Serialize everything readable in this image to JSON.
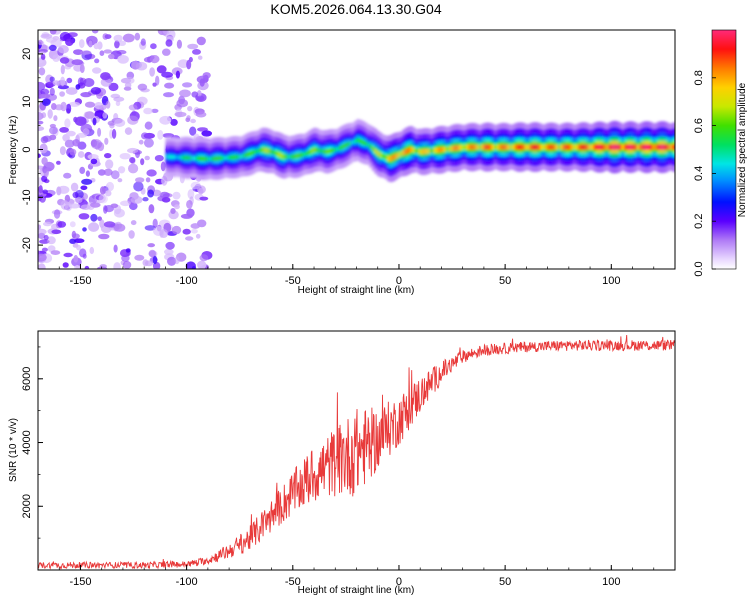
{
  "title": "KOM5.2026.064.13.30.G04",
  "chart_data": [
    {
      "type": "heatmap",
      "xlabel": "Height of straight line (km)",
      "ylabel": "Frequency (Hz)",
      "xlim": [
        -170,
        130
      ],
      "ylim": [
        -25,
        25
      ],
      "xticks": [
        -150,
        -100,
        -50,
        0,
        50,
        100
      ],
      "yticks": [
        -20,
        -10,
        0,
        10,
        20
      ],
      "colorbar": {
        "label": "Normalized spectral amplitude",
        "range": [
          0,
          1
        ],
        "ticks": [
          0.0,
          0.2,
          0.4,
          0.6,
          0.8
        ]
      },
      "ridge_frequency": {
        "x": [
          -110,
          -90,
          -75,
          -65,
          -60,
          -55,
          -50,
          -45,
          -40,
          -35,
          -30,
          -25,
          -20,
          -15,
          -10,
          -5,
          0,
          5,
          10,
          20,
          30,
          50,
          70,
          90,
          110,
          130
        ],
        "freq_hz": [
          -1.5,
          -2,
          -1.5,
          0,
          -0.5,
          -1.5,
          -1.5,
          -1,
          0,
          -0.5,
          0,
          1,
          2,
          1,
          -1,
          -2,
          -1,
          0,
          -0.5,
          0,
          0.5,
          0.5,
          0.5,
          0.5,
          0.5,
          0.5
        ]
      },
      "ridge_amplitude": {
        "x": [
          -110,
          -100,
          -90,
          -80,
          -70,
          -60,
          -50,
          -40,
          -30,
          -20,
          -10,
          0,
          10,
          20,
          30,
          40,
          50,
          60,
          70,
          80,
          90,
          100,
          110,
          120,
          130
        ],
        "amplitude": [
          0.35,
          0.45,
          0.5,
          0.45,
          0.5,
          0.6,
          0.5,
          0.55,
          0.5,
          0.45,
          0.6,
          0.75,
          0.65,
          0.7,
          0.7,
          0.75,
          0.72,
          0.8,
          0.75,
          0.75,
          0.8,
          0.9,
          0.85,
          0.88,
          0.85
        ]
      }
    },
    {
      "type": "line",
      "xlabel": "Height of straight line (km)",
      "ylabel": "SNR (10 * v/v)",
      "xlim": [
        -170,
        130
      ],
      "ylim": [
        0,
        7500
      ],
      "xticks": [
        -150,
        -100,
        -50,
        0,
        50,
        100
      ],
      "yticks": [
        2000,
        4000,
        6000
      ],
      "series": [
        {
          "name": "SNR",
          "color": "#e83a3a",
          "x": [
            -170,
            -140,
            -120,
            -100,
            -90,
            -80,
            -70,
            -60,
            -50,
            -40,
            -30,
            -20,
            -10,
            0,
            10,
            20,
            30,
            40,
            60,
            80,
            100,
            130
          ],
          "y": [
            150,
            150,
            150,
            180,
            300,
            600,
            1000,
            1700,
            2400,
            3000,
            3400,
            3700,
            4100,
            4700,
            5500,
            6200,
            6700,
            6900,
            7000,
            7050,
            7050,
            7050
          ],
          "noise": [
            100,
            100,
            100,
            100,
            120,
            250,
            400,
            550,
            700,
            900,
            1100,
            1400,
            1000,
            800,
            600,
            350,
            200,
            180,
            170,
            170,
            170,
            170
          ]
        }
      ]
    }
  ]
}
